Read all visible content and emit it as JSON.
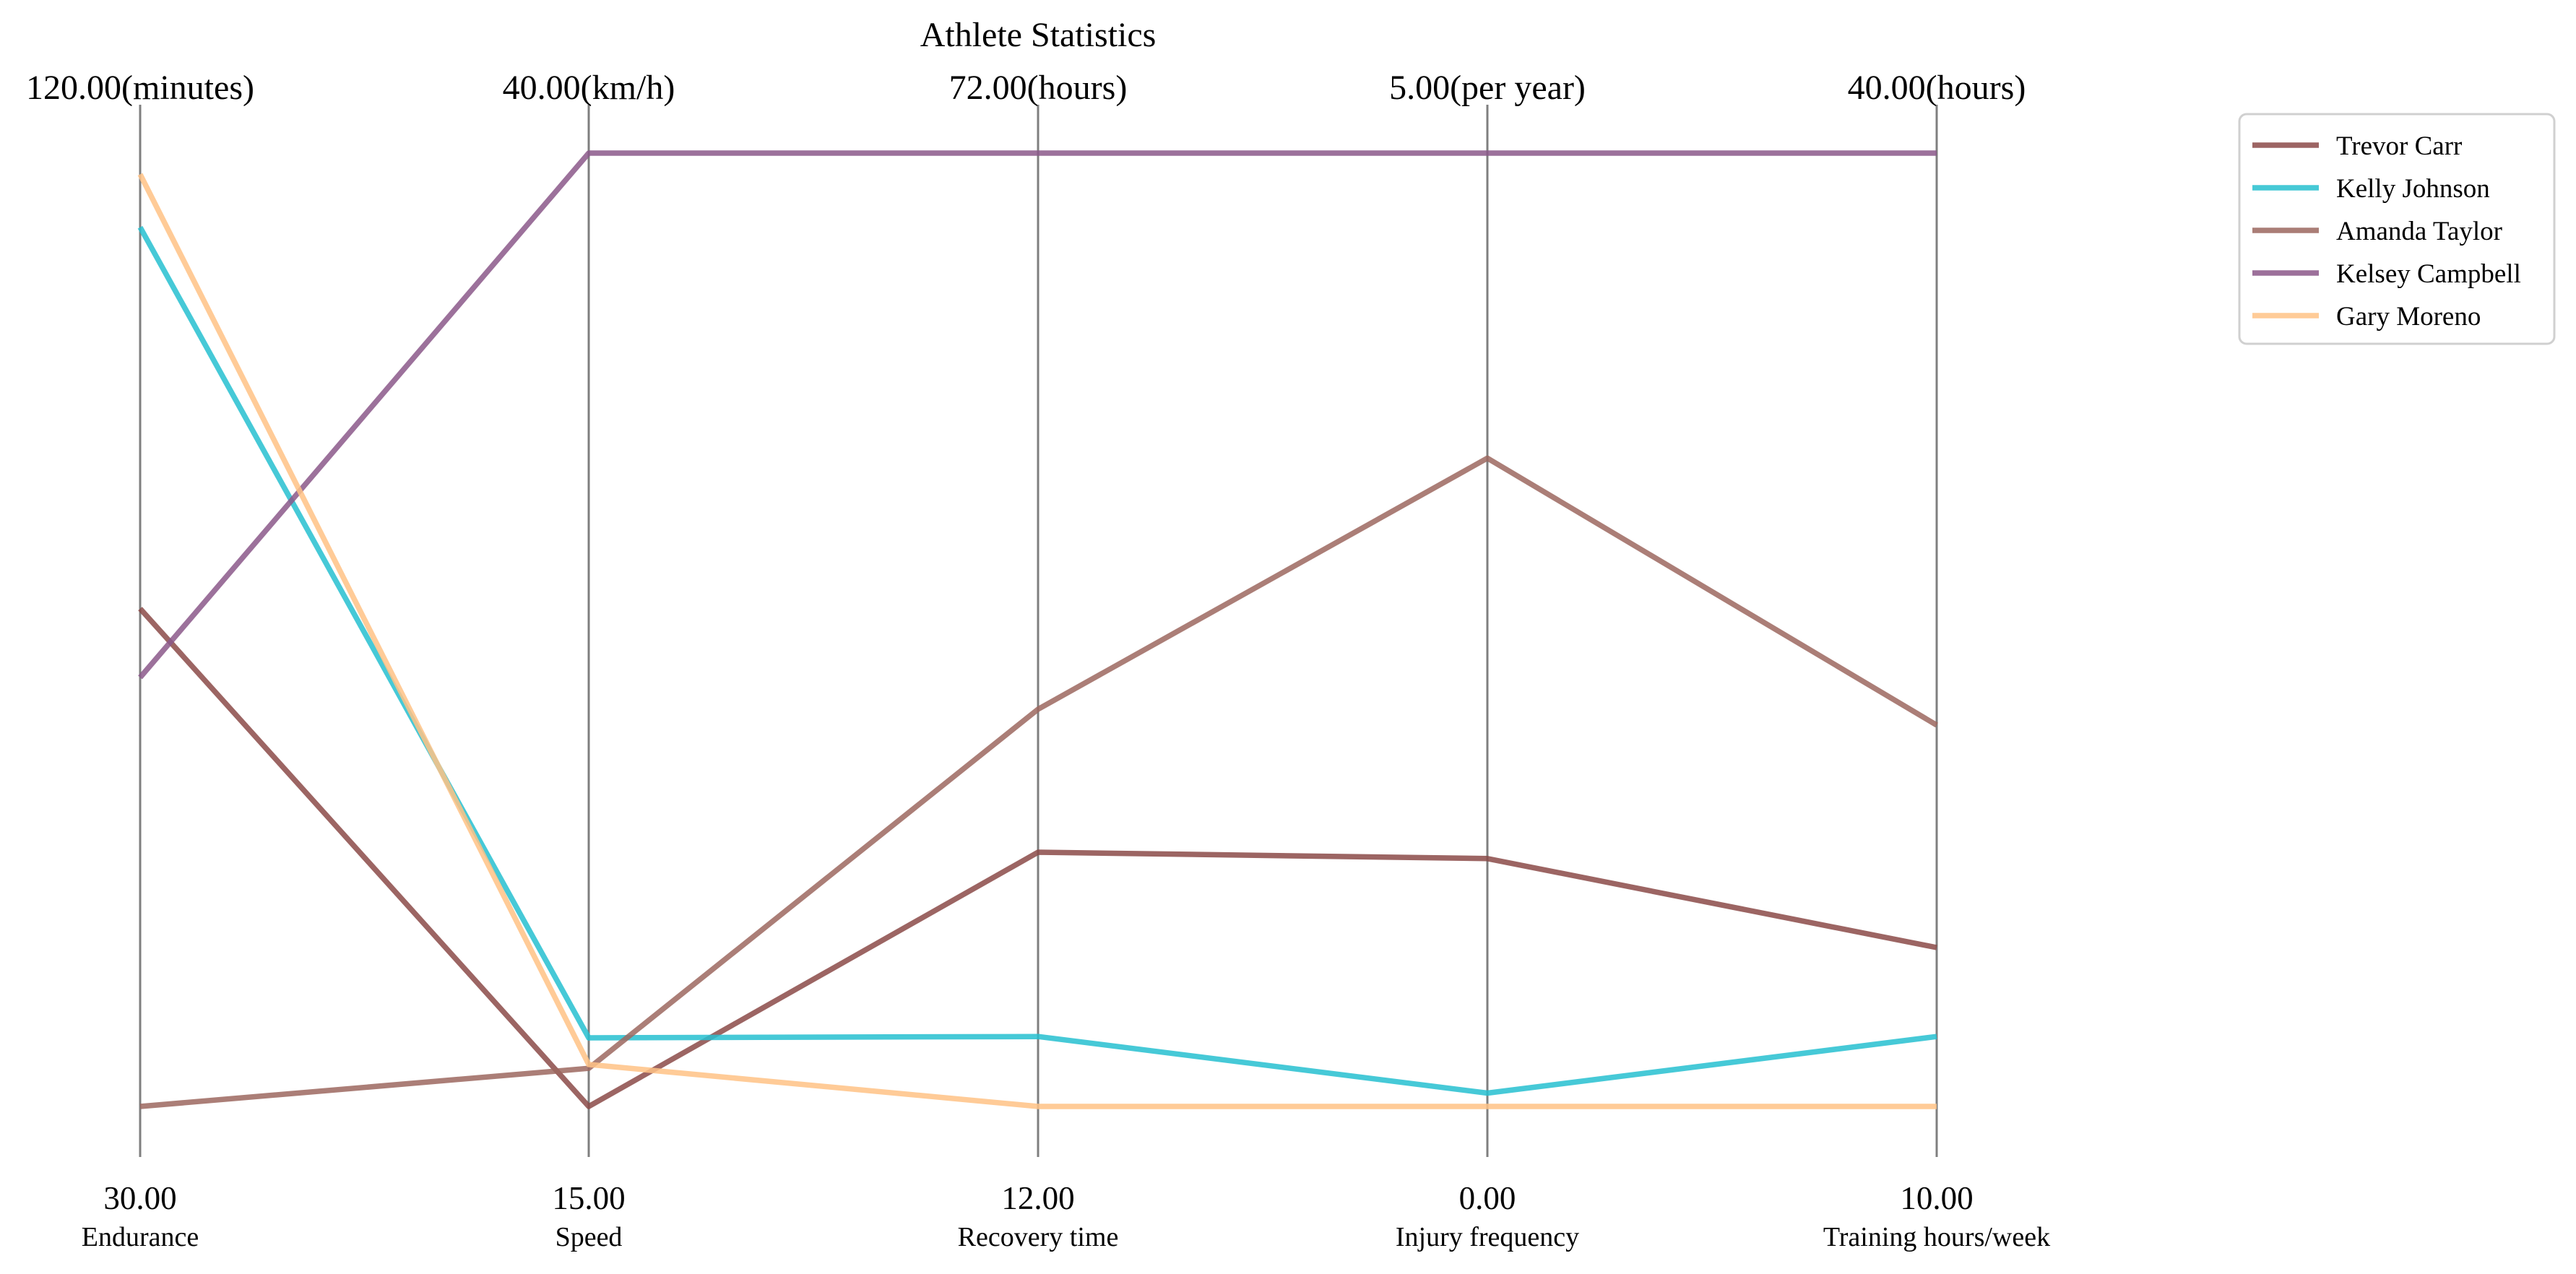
{
  "chart_data": {
    "type": "parallel-coordinates",
    "title": "Athlete Statistics",
    "axes": [
      {
        "label": "Endurance",
        "unit": "(minutes)",
        "min": 30,
        "max": 120,
        "min_label": "30.00",
        "max_label": "120.00(minutes)"
      },
      {
        "label": "Speed",
        "unit": "(km/h)",
        "min": 15,
        "max": 40,
        "min_label": "15.00",
        "max_label": "40.00(km/h)"
      },
      {
        "label": "Recovery time",
        "unit": "(hours)",
        "min": 12,
        "max": 72,
        "min_label": "12.00",
        "max_label": "72.00(hours)"
      },
      {
        "label": "Injury frequency",
        "unit": "(per year)",
        "min": 0,
        "max": 5,
        "min_label": "0.00",
        "max_label": "5.00(per year)"
      },
      {
        "label": "Training hours/week",
        "unit": "(hours)",
        "min": 10,
        "max": 40,
        "min_label": "10.00",
        "max_label": "40.00(hours)"
      }
    ],
    "series": [
      {
        "name": "Trevor Carr",
        "color": "#8b4a48",
        "values": [
          77,
          15,
          28,
          1.3,
          15
        ]
      },
      {
        "name": "Kelly Johnson",
        "color": "#26c0d0",
        "values": [
          113,
          16.8,
          16.4,
          0.07,
          12.2
        ]
      },
      {
        "name": "Amanda Taylor",
        "color": "#9c675f",
        "values": [
          30,
          16,
          37,
          3.4,
          22
        ]
      },
      {
        "name": "Kelsey Campbell",
        "color": "#8b5889",
        "values": [
          70.5,
          40,
          72,
          5,
          40
        ]
      },
      {
        "name": "Gary Moreno",
        "color": "#ffc285",
        "values": [
          118,
          16.1,
          12,
          0,
          10
        ]
      }
    ],
    "legend": {
      "position": "top-right"
    },
    "grid": false
  }
}
